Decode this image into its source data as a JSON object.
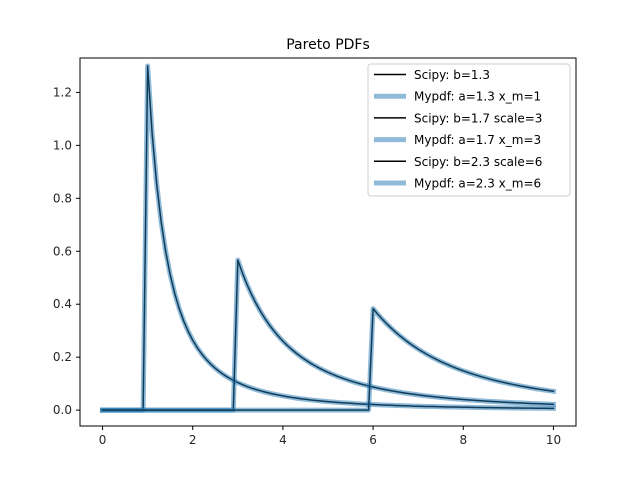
{
  "chart_data": {
    "type": "line",
    "title": "Pareto PDFs",
    "xlabel": "",
    "ylabel": "",
    "xlim": [
      -0.5,
      10.5
    ],
    "ylim": [
      -0.06,
      1.33
    ],
    "x_ticks": [
      0,
      2,
      4,
      6,
      8,
      10
    ],
    "y_ticks": [
      0.0,
      0.2,
      0.4,
      0.6,
      0.8,
      1.0,
      1.2
    ],
    "grid": false,
    "legend_position": "top-right",
    "x_domain": [
      0,
      10
    ],
    "sample_step": 0.1,
    "series": [
      {
        "name": "Scipy: b=1.3",
        "family": "pareto",
        "shape": 1.3,
        "scale": 1,
        "style": "thin",
        "color": "#000000"
      },
      {
        "name": "Mypdf: a=1.3 x_m=1",
        "family": "pareto",
        "shape": 1.3,
        "scale": 1,
        "style": "thick",
        "color": "#1f77b4"
      },
      {
        "name": "Scipy: b=1.7 scale=3",
        "family": "pareto",
        "shape": 1.7,
        "scale": 3,
        "style": "thin",
        "color": "#000000"
      },
      {
        "name": "Mypdf: a=1.7 x_m=3",
        "family": "pareto",
        "shape": 1.7,
        "scale": 3,
        "style": "thick",
        "color": "#1f77b4"
      },
      {
        "name": "Scipy: b=2.3 scale=6",
        "family": "pareto",
        "shape": 2.3,
        "scale": 6,
        "style": "thin",
        "color": "#000000"
      },
      {
        "name": "Mypdf: a=2.3 x_m=6",
        "family": "pareto",
        "shape": 2.3,
        "scale": 6,
        "style": "thick",
        "color": "#1f77b4"
      }
    ]
  }
}
